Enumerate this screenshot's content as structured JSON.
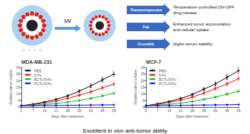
{
  "chart_data": [
    {
      "type": "line",
      "title": "MDA-MB-231",
      "xlabel": "Days after treatment",
      "ylabel": "Relative tumor volume",
      "x": [
        0,
        7,
        14,
        21,
        28,
        35,
        42,
        49,
        56
      ],
      "xlim": [
        0,
        56
      ],
      "xticks": [
        0,
        7,
        14,
        21,
        28,
        35,
        42,
        49,
        56
      ],
      "ylim": [
        0,
        30
      ],
      "yticks": [
        0,
        5,
        10,
        15,
        20,
        25,
        30
      ],
      "grid": false,
      "legend": "upper left",
      "marker": "plus",
      "series": [
        {
          "name": "PBS",
          "color": "#000000",
          "values": [
            1,
            2.2,
            3.8,
            5.8,
            8.5,
            12.0,
            16.0,
            20.5,
            25.0
          ],
          "errors": [
            0.08,
            0.176,
            0.304,
            0.464,
            0.68,
            0.96,
            1.28,
            1.64,
            2.0
          ]
        },
        {
          "name": "5-Fu",
          "color": "#ff0000",
          "values": [
            1,
            1.8,
            3.0,
            4.5,
            6.5,
            9.0,
            11.5,
            14.5,
            17.5
          ],
          "errors": [
            0.08,
            0.144,
            0.24,
            0.36,
            0.52,
            0.72,
            0.92,
            1.16,
            1.4
          ]
        },
        {
          "name": "BCTL/5-Fu",
          "color": "#00bb00",
          "values": [
            1,
            1.3,
            1.9,
            2.7,
            3.7,
            5.0,
            6.5,
            8.5,
            10.5
          ],
          "errors": [
            0.08,
            0.104,
            0.152,
            0.216,
            0.296,
            0.4,
            0.52,
            0.68,
            0.84
          ]
        },
        {
          "name": "PCTL/5-Fu",
          "color": "#0000ff",
          "values": [
            1,
            1.0,
            1.1,
            1.2,
            1.3,
            1.4,
            1.5,
            1.6,
            1.7
          ],
          "errors": [
            0.08,
            0.08,
            0.088,
            0.096,
            0.104,
            0.112,
            0.12,
            0.128,
            0.136
          ]
        }
      ],
      "annotations": [
        "UV",
        "Thermoresponsive",
        "Temperature controlled ON-OFF\ndrug release",
        "Fab",
        "Enhanced tumor accumulation\nand cellular uptake",
        "Crosslink",
        "Highe serum stability",
        "~",
        "~",
        "~",
        "~",
        "Excellent ",
        "in vivo",
        " anti-tumor ability"
      ]
    },
    {
      "type": "line",
      "title": "MCF-7",
      "xlabel": "Days after treatment",
      "ylabel": "Relative tumor volume",
      "x": [
        0,
        7,
        14,
        21,
        28,
        35,
        42,
        49,
        56
      ],
      "xlim": [
        0,
        56
      ],
      "xticks": [
        0,
        7,
        14,
        21,
        28,
        35,
        42,
        49,
        56
      ],
      "ylim": [
        0,
        30
      ],
      "yticks": [
        0,
        5,
        10,
        15,
        20,
        25,
        30
      ],
      "grid": false,
      "legend": "upper left",
      "marker": "plus",
      "series": [
        {
          "name": "PBS",
          "color": "#000000",
          "values": [
            1,
            2.5,
            4.2,
            6.5,
            9.5,
            13.5,
            17.5,
            22.5,
            27.5
          ],
          "errors": [
            0.08,
            0.2,
            0.336,
            0.52,
            0.76,
            1.08,
            1.4,
            1.8,
            2.2
          ]
        },
        {
          "name": "5-Fu",
          "color": "#ff0000",
          "values": [
            1,
            2.0,
            3.5,
            5.2,
            7.5,
            10.5,
            14.0,
            17.5,
            21.5
          ],
          "errors": [
            0.08,
            0.16,
            0.28,
            0.416,
            0.6,
            0.84,
            1.12,
            1.4,
            1.72
          ]
        },
        {
          "name": "BCTL/5-Fu",
          "color": "#00bb00",
          "values": [
            1,
            1.4,
            2.1,
            3.0,
            4.2,
            5.8,
            7.5,
            9.8,
            12.0
          ],
          "errors": [
            0.08,
            0.112,
            0.168,
            0.24,
            0.336,
            0.464,
            0.6,
            0.784,
            0.96
          ]
        },
        {
          "name": "PCTL/5-Fu",
          "color": "#0000ff",
          "values": [
            1,
            1.0,
            1.1,
            1.2,
            1.4,
            1.5,
            1.6,
            1.7,
            1.9
          ],
          "errors": [
            0.08,
            0.08,
            0.088,
            0.096,
            0.112,
            0.12,
            0.128,
            0.136,
            0.152
          ]
        }
      ]
    }
  ]
}
